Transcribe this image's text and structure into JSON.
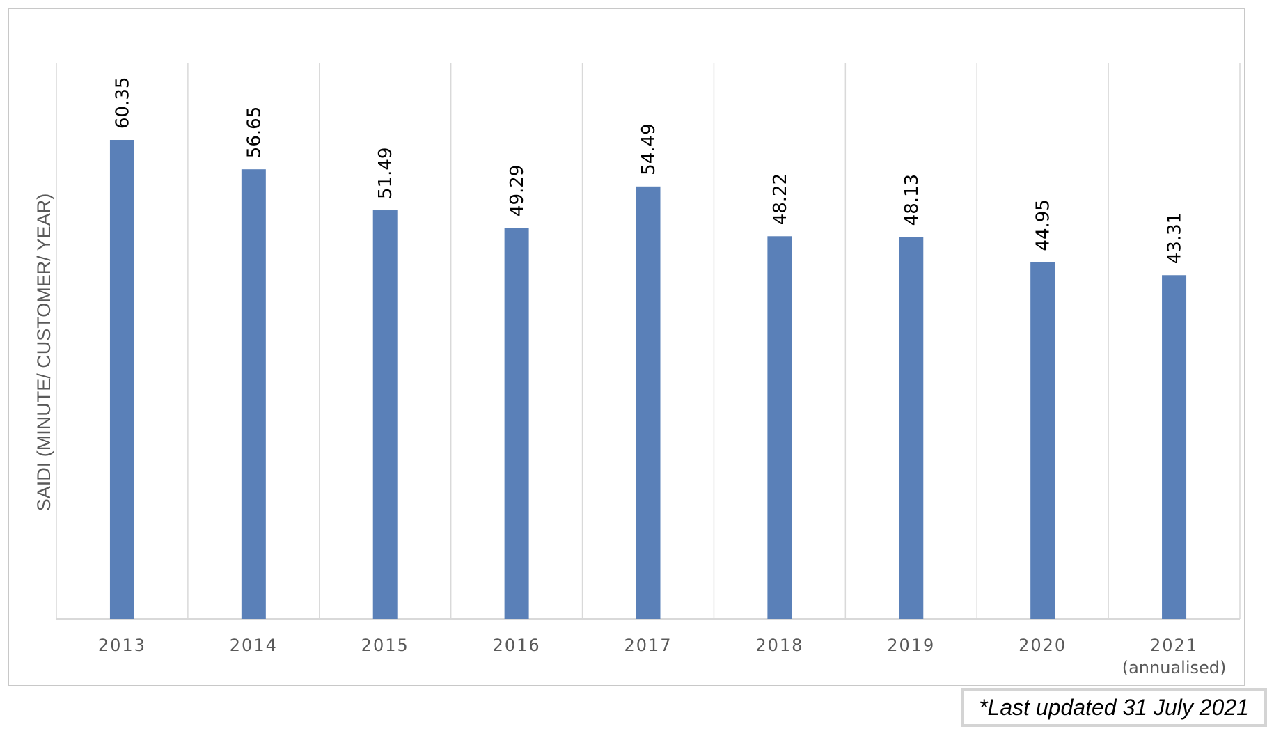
{
  "chart_data": {
    "type": "bar",
    "categories": [
      "2013",
      "2014",
      "2015",
      "2016",
      "2017",
      "2018",
      "2019",
      "2020",
      "2021"
    ],
    "category_sublabels": [
      "",
      "",
      "",
      "",
      "",
      "",
      "",
      "",
      "(annualised)"
    ],
    "values": [
      60.35,
      56.65,
      51.49,
      49.29,
      54.49,
      48.22,
      48.13,
      44.95,
      43.31
    ],
    "data_labels": [
      "60.35",
      "56.65",
      "51.49",
      "49.29",
      "54.49",
      "48.22",
      "48.13",
      "44.95",
      "43.31"
    ],
    "title": "",
    "xlabel": "",
    "ylabel": "SAIDI (MINUTE/ CUSTOMER/ YEAR)",
    "ylim": [
      0,
      70
    ],
    "grid": "vertical separators between categories",
    "legend": "none",
    "bar_color": "#5a80b8",
    "grid_color": "#d9d9d9"
  },
  "footnote": "*Last updated 31 July 2021"
}
